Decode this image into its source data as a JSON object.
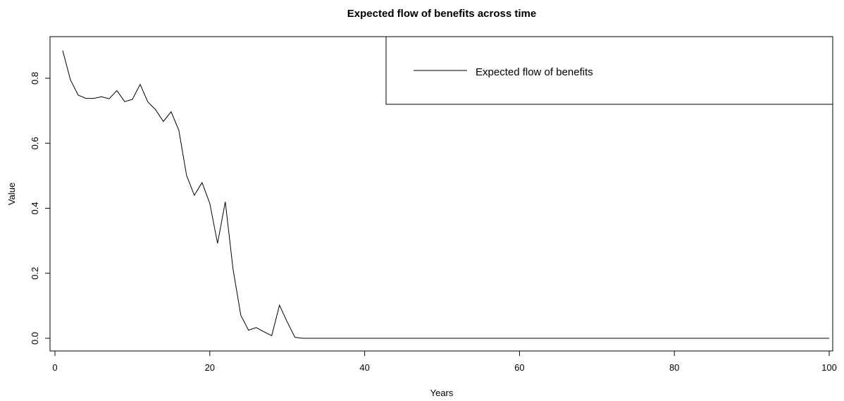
{
  "chart_data": {
    "type": "line",
    "title": "Expected flow of benefits across time",
    "xlabel": "Years",
    "ylabel": "Value",
    "xlim": [
      0,
      100
    ],
    "ylim": [
      -0.02,
      0.92
    ],
    "xticks": [
      0,
      20,
      40,
      60,
      80,
      100
    ],
    "yticks": [
      0.0,
      0.2,
      0.4,
      0.6,
      0.8
    ],
    "xtick_labels": [
      "0",
      "20",
      "40",
      "60",
      "80",
      "100"
    ],
    "ytick_labels": [
      "0.0",
      "0.2",
      "0.4",
      "0.6",
      "0.8"
    ],
    "grid": false,
    "legend_position": "top-right",
    "series": [
      {
        "name": "Expected flow of benefits",
        "color": "#000000",
        "x": [
          1,
          2,
          3,
          4,
          5,
          6,
          7,
          8,
          9,
          10,
          11,
          12,
          13,
          14,
          15,
          16,
          17,
          18,
          19,
          20,
          21,
          22,
          23,
          24,
          25,
          26,
          27,
          28,
          29,
          30,
          31,
          32,
          33,
          34,
          35,
          36,
          37,
          38,
          39,
          40,
          41,
          42,
          43,
          44,
          45,
          46,
          47,
          48,
          49,
          50,
          51,
          52,
          53,
          54,
          55,
          56,
          57,
          58,
          59,
          60,
          61,
          62,
          63,
          64,
          65,
          66,
          67,
          68,
          69,
          70,
          71,
          72,
          73,
          74,
          75,
          76,
          77,
          78,
          79,
          80,
          81,
          82,
          83,
          84,
          85,
          86,
          87,
          88,
          89,
          90,
          91,
          92,
          93,
          94,
          95,
          96,
          97,
          98,
          99,
          100
        ],
        "y": [
          0.885,
          0.795,
          0.748,
          0.738,
          0.738,
          0.743,
          0.737,
          0.762,
          0.728,
          0.735,
          0.781,
          0.727,
          0.703,
          0.667,
          0.697,
          0.64,
          0.501,
          0.44,
          0.479,
          0.415,
          0.292,
          0.42,
          0.213,
          0.071,
          0.025,
          0.033,
          0.02,
          0.008,
          0.102,
          0.05,
          0.003,
          0.0,
          0.0,
          0.0,
          0.0,
          0.0,
          0.0,
          0.0,
          0.0,
          0.0,
          0.0,
          0.0,
          0.0,
          0.0,
          0.0,
          0.0,
          0.0,
          0.0,
          0.0,
          0.0,
          0.0,
          0.0,
          0.0,
          0.0,
          0.0,
          0.0,
          0.0,
          0.0,
          0.0,
          0.0,
          0.0,
          0.0,
          0.0,
          0.0,
          0.0,
          0.0,
          0.0,
          0.0,
          0.0,
          0.0,
          0.0,
          0.0,
          0.0,
          0.0,
          0.0,
          0.0,
          0.0,
          0.0,
          0.0,
          0.0,
          0.0,
          0.0,
          0.0,
          0.0,
          0.0,
          0.0,
          0.0,
          0.0,
          0.0,
          0.0,
          0.0,
          0.0,
          0.0,
          0.0,
          0.0,
          0.0,
          0.0,
          0.0,
          0.0,
          0.0
        ]
      }
    ]
  }
}
